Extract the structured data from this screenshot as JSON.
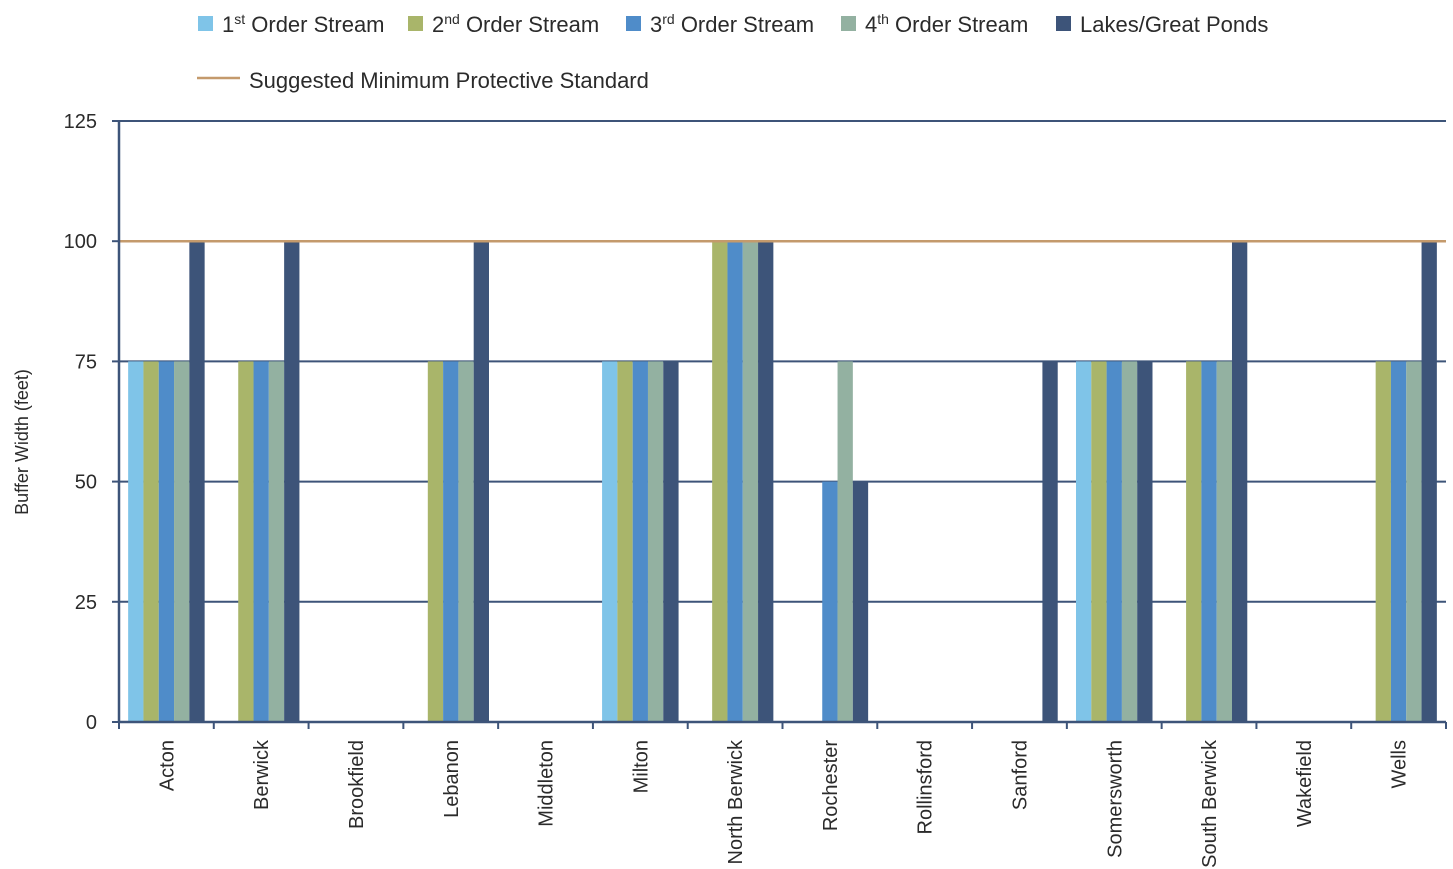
{
  "chart_data": {
    "type": "bar",
    "ylabel": "Buffer Width (feet)",
    "xlabel": "",
    "ylim": [
      0,
      125
    ],
    "yticks": [
      0,
      25,
      50,
      75,
      100,
      125
    ],
    "grid": true,
    "legend_position": "top",
    "categories": [
      "Acton",
      "Berwick",
      "Brookfield",
      "Lebanon",
      "Middleton",
      "Milton",
      "North Berwick",
      "Rochester",
      "Rollinsford",
      "Sanford",
      "Somersworth",
      "South Berwick",
      "Wakefield",
      "Wells"
    ],
    "series": [
      {
        "name": "1st Order Stream",
        "name_base": "1",
        "name_sup": "st",
        "name_rest": " Order Stream",
        "color": "#7fc4e8",
        "values": [
          75,
          0,
          0,
          0,
          0,
          75,
          0,
          0,
          0,
          0,
          75,
          0,
          0,
          0
        ]
      },
      {
        "name": "2nd Order Stream",
        "name_base": "2",
        "name_sup": "nd",
        "name_rest": " Order Stream",
        "color": "#a9b56a",
        "values": [
          75,
          75,
          0,
          75,
          0,
          75,
          100,
          0,
          0,
          0,
          75,
          75,
          0,
          75
        ]
      },
      {
        "name": "3rd Order Stream",
        "name_base": "3",
        "name_sup": "rd",
        "name_rest": " Order Stream",
        "color": "#4f8cc9",
        "values": [
          75,
          75,
          0,
          75,
          0,
          75,
          100,
          50,
          0,
          0,
          75,
          75,
          0,
          75
        ]
      },
      {
        "name": "4th Order Stream",
        "name_base": "4",
        "name_sup": "th",
        "name_rest": " Order Stream",
        "color": "#93b1a1",
        "values": [
          75,
          75,
          0,
          75,
          0,
          75,
          100,
          75,
          0,
          0,
          75,
          75,
          0,
          75
        ]
      },
      {
        "name": "Lakes/Great Ponds",
        "name_base": "Lakes/Great Ponds",
        "name_sup": "",
        "name_rest": "",
        "color": "#3d5479",
        "values": [
          100,
          100,
          0,
          100,
          0,
          75,
          100,
          50,
          0,
          75,
          75,
          100,
          0,
          100
        ]
      }
    ],
    "reference_line": {
      "name": "Suggested Minimum Protective Standard",
      "value": 100,
      "color": "#c49a6c"
    },
    "axis_color": "#3d5479"
  }
}
